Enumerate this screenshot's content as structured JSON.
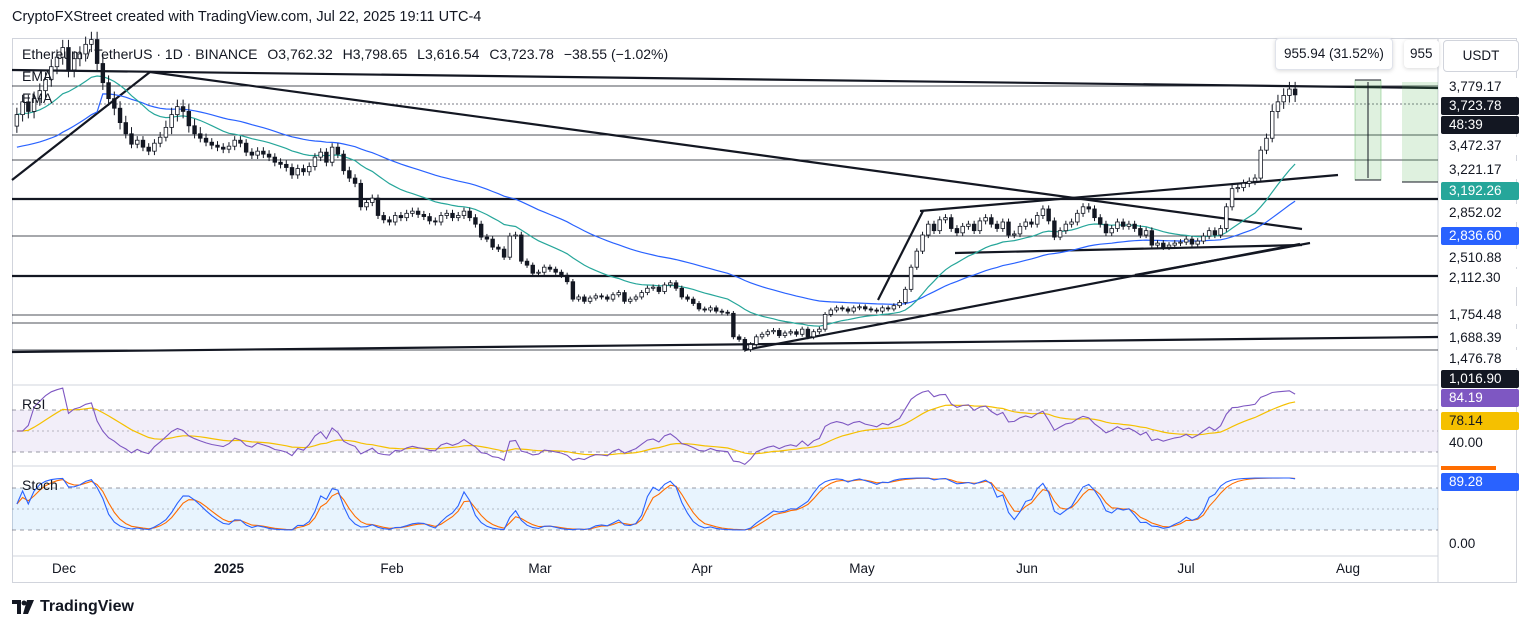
{
  "attribution": "CryptoFXStreet created with TradingView.com, Jul 22, 2025 19:11 UTC-4",
  "symbol_line": {
    "symbol": "Ethereum / TetherUS · 1D · BINANCE",
    "open": "O3,762.32",
    "high": "H3,798.65",
    "low": "L3,616.54",
    "close": "C3,723.78",
    "change": "−38.55 (−1.02%)"
  },
  "indicators": {
    "ema1": "EMA",
    "ema2": "EMA",
    "rsi": "RSI",
    "stoch": "Stoch"
  },
  "measure": {
    "label": "955.94 (31.52%)",
    "label2": "955"
  },
  "currency_button": "USDT",
  "footer": {
    "brand": "TradingView"
  },
  "colors": {
    "up": "#131722",
    "down": "#131722",
    "ema_fast": "#26a69a",
    "ema_slow": "#2962ff",
    "rsi": "#7e57c2",
    "rsi_ma": "#f5c000",
    "stoch_k": "#2962ff",
    "stoch_d": "#ff6d00",
    "rsi_band": "#7e57c2",
    "stoch_band": "#2196f3",
    "measure": "#4caf50"
  },
  "chart_data": [
    {
      "type": "candlestick",
      "panel": "price",
      "x_ticks": [
        "Dec",
        "2025",
        "Feb",
        "Mar",
        "Apr",
        "May",
        "Jun",
        "Jul",
        "Aug"
      ],
      "price_scale_labels": [
        {
          "value": "3,779.17",
          "style": "plain"
        },
        {
          "value": "3,723.78",
          "style": "last-price"
        },
        {
          "value": "48:39",
          "style": "countdown"
        },
        {
          "value": "3,472.37",
          "style": "plain"
        },
        {
          "value": "3,221.17",
          "style": "plain"
        },
        {
          "value": "3,192.26",
          "style": "ema-fast"
        },
        {
          "value": "2,852.02",
          "style": "plain"
        },
        {
          "value": "2,836.60",
          "style": "ema-slow"
        },
        {
          "value": "2,510.88",
          "style": "plain"
        },
        {
          "value": "2,112.30",
          "style": "plain"
        },
        {
          "value": "1,754.48",
          "style": "plain"
        },
        {
          "value": "1,688.39",
          "style": "plain"
        },
        {
          "value": "1,476.78",
          "style": "plain"
        },
        {
          "value": "1,016.90",
          "style": "dark"
        }
      ],
      "horizontal_levels": [
        3779.17,
        3472.37,
        3221.17,
        2852.02,
        2510.88,
        2112.3,
        1754.48,
        1688.39,
        1476.78
      ],
      "close_series": [
        3600,
        3680,
        3620,
        3700,
        3750,
        3820,
        3900,
        3960,
        4020,
        3880,
        3950,
        3980,
        4040,
        4070,
        3920,
        3800,
        3700,
        3640,
        3550,
        3480,
        3380,
        3420,
        3350,
        3310,
        3390,
        3450,
        3520,
        3600,
        3650,
        3620,
        3530,
        3480,
        3440,
        3400,
        3370,
        3350,
        3330,
        3360,
        3420,
        3390,
        3300,
        3270,
        3310,
        3280,
        3250,
        3200,
        3180,
        3150,
        3080,
        3140,
        3110,
        3160,
        3250,
        3300,
        3200,
        3350,
        3280,
        3120,
        3050,
        3000,
        2780,
        2820,
        2860,
        2700,
        2660,
        2640,
        2700,
        2680,
        2720,
        2740,
        2710,
        2690,
        2650,
        2640,
        2700,
        2720,
        2680,
        2700,
        2740,
        2680,
        2620,
        2500,
        2480,
        2400,
        2380,
        2300,
        2510,
        2520,
        2260,
        2220,
        2140,
        2150,
        2200,
        2180,
        2150,
        2120,
        2060,
        1900,
        1920,
        1880,
        1910,
        1930,
        1920,
        1900,
        1940,
        1960,
        1880,
        1900,
        1920,
        1960,
        2000,
        2010,
        1970,
        2030,
        2050,
        2000,
        1920,
        1900,
        1860,
        1810,
        1800,
        1820,
        1790,
        1780,
        1770,
        1580,
        1560,
        1480,
        1520,
        1580,
        1600,
        1620,
        1630,
        1590,
        1610,
        1620,
        1600,
        1640,
        1580,
        1620,
        1640,
        1760,
        1800,
        1820,
        1810,
        1790,
        1820,
        1830,
        1810,
        1800,
        1790,
        1820,
        1810,
        1840,
        1870,
        1990,
        2200,
        2360,
        2520,
        2620,
        2560,
        2660,
        2680,
        2580,
        2540,
        2600,
        2620,
        2560,
        2650,
        2680,
        2620,
        2580,
        2640,
        2520,
        2530,
        2600,
        2640,
        2620,
        2700,
        2760,
        2650,
        2500,
        2560,
        2620,
        2640,
        2720,
        2780,
        2760,
        2680,
        2620,
        2540,
        2580,
        2640,
        2600,
        2620,
        2580,
        2520,
        2560,
        2420,
        2440,
        2400,
        2420,
        2440,
        2450,
        2480,
        2430,
        2460,
        2510,
        2560,
        2520,
        2580,
        2780,
        2950,
        2960,
        3000,
        3020,
        3050,
        3320,
        3440,
        3620,
        3680,
        3720,
        3760,
        3723.78
      ]
    },
    {
      "type": "line",
      "panel": "rsi",
      "series": [
        {
          "name": "RSI",
          "last": "84.19"
        },
        {
          "name": "RSI-based MA",
          "last": "78.14"
        }
      ],
      "levels": [
        "40.00"
      ]
    },
    {
      "type": "line",
      "panel": "stoch",
      "series": [
        {
          "name": "Stoch",
          "last": "89.28"
        }
      ],
      "levels": [
        "0.00"
      ]
    }
  ]
}
